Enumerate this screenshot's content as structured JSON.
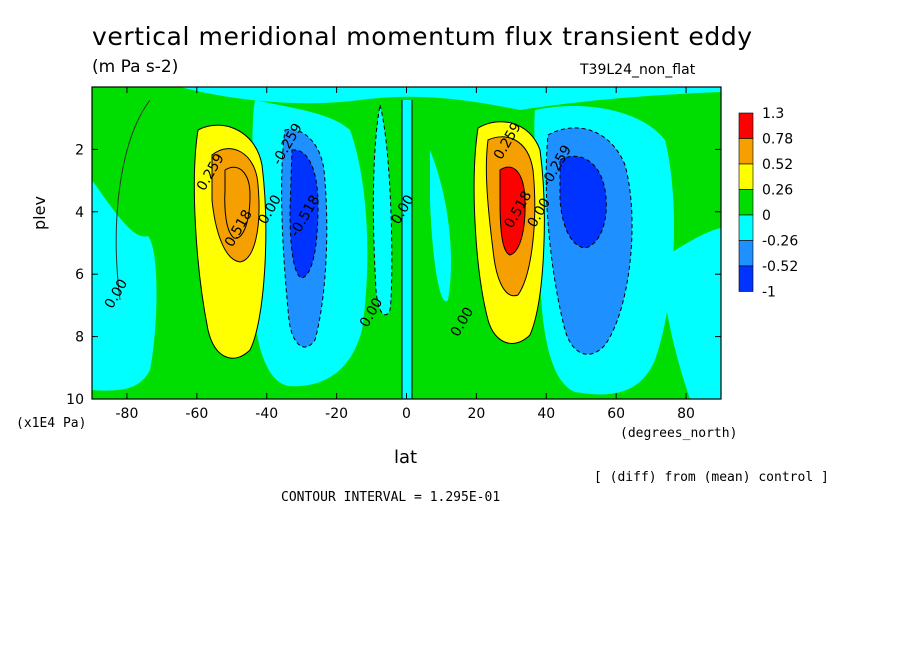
{
  "header": {
    "title": "vertical meridional momentum flux transient eddy",
    "units": "(m Pa s-2)",
    "run_name": "T39L24_non_flat"
  },
  "axes": {
    "ylabel": "plev",
    "yunit": "(x1E4 Pa)",
    "xlabel": "lat",
    "xunit": "(degrees_north)"
  },
  "notes": {
    "diff": "[ (diff) from (mean) control ]",
    "contour_interval": "CONTOUR INTERVAL = 1.295E-01"
  },
  "chart_data": {
    "type": "heatmap",
    "title": "vertical meridional momentum flux transient eddy",
    "xlabel": "lat",
    "ylabel": "plev",
    "xlim": [
      -90,
      90
    ],
    "ylim": [
      10,
      0
    ],
    "x_ticks": [
      -80,
      -60,
      -40,
      -20,
      0,
      20,
      40,
      60,
      80
    ],
    "y_ticks": [
      2,
      4,
      6,
      8,
      10
    ],
    "colorbar": {
      "labels": [
        "1.3",
        "0.78",
        "0.52",
        "0.26",
        "0",
        "-0.26",
        "-0.52",
        "-1"
      ],
      "colors": [
        "#ff0000",
        "#f5a000",
        "#ffff00",
        "#00dd00",
        "#00ffff",
        "#1e90ff",
        "#0033ff"
      ]
    },
    "contour_labels": [
      {
        "text": "0.259",
        "lat": -55,
        "plev": 2.8
      },
      {
        "text": "0.518",
        "lat": -47,
        "plev": 4.6
      },
      {
        "text": "0.00",
        "lat": -38,
        "plev": 4.0
      },
      {
        "text": "-0.259",
        "lat": -33,
        "plev": 1.9
      },
      {
        "text": "-0.518",
        "lat": -28,
        "plev": 4.2
      },
      {
        "text": "0.00",
        "lat": -82,
        "plev": 6.7
      },
      {
        "text": "0.00",
        "lat": 0,
        "plev": 4.0
      },
      {
        "text": "0.00",
        "lat": -9,
        "plev": 7.3
      },
      {
        "text": "0.00",
        "lat": 17,
        "plev": 7.6
      },
      {
        "text": "0.259",
        "lat": 30,
        "plev": 1.8
      },
      {
        "text": "0.518",
        "lat": 33,
        "plev": 4.0
      },
      {
        "text": "0.00",
        "lat": 39,
        "plev": 4.1
      },
      {
        "text": "-0.259",
        "lat": 44,
        "plev": 2.6
      }
    ],
    "features": [
      {
        "sign": "positive",
        "lat_center": -46,
        "plev_center": 3.3,
        "max_level": "0.52"
      },
      {
        "sign": "negative",
        "lat_center": -30,
        "plev_center": 4.2,
        "min_level": "-0.52"
      },
      {
        "sign": "positive",
        "lat_center": 31,
        "plev_center": 4.0,
        "max_level": "0.78"
      },
      {
        "sign": "negative",
        "lat_center": 48,
        "plev_center": 3.8,
        "min_level": "-0.52"
      }
    ]
  }
}
